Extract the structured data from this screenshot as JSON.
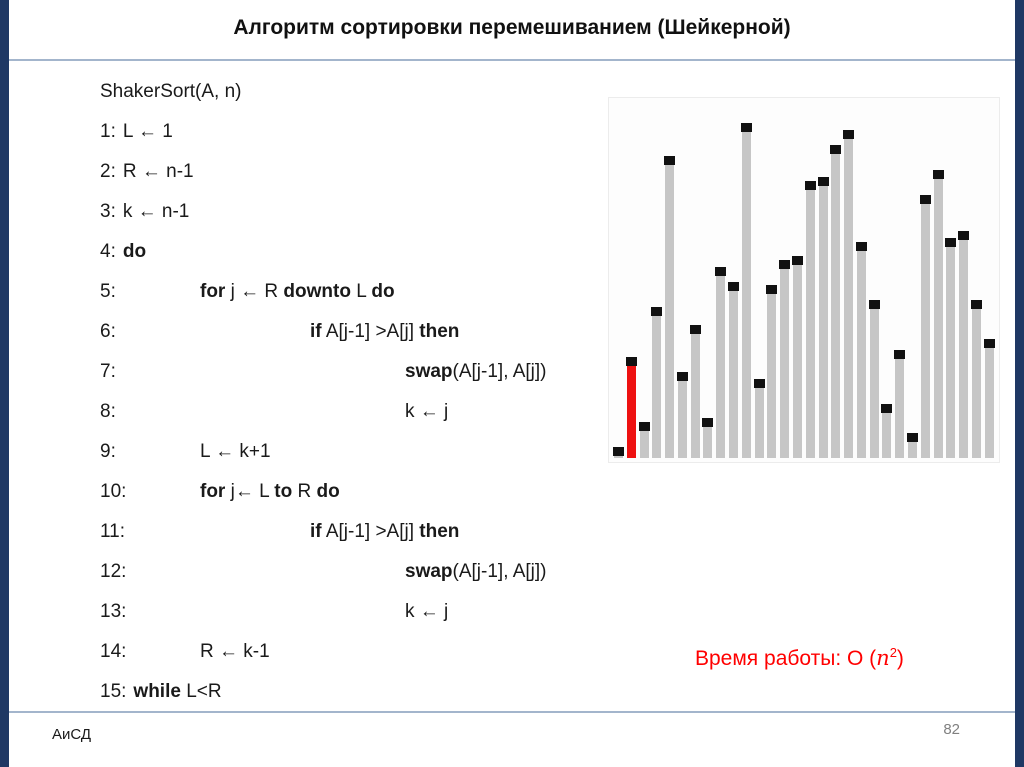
{
  "title": "Алгоритм сортировки перемешиванием (Шейкерной)",
  "footer": {
    "left": "АиСД",
    "page": "82"
  },
  "runtime": {
    "prefix": "Время работы: O (",
    "var": "n",
    "exp": "2",
    "suffix": ")"
  },
  "code": {
    "lines": [
      {
        "num": "",
        "indent": 0,
        "segments": [
          {
            "t": "ShakerSort(A, n)",
            "b": false
          }
        ]
      },
      {
        "num": "1:",
        "indent": 0,
        "segments": [
          {
            "t": "L ← 1",
            "b": false
          }
        ]
      },
      {
        "num": "2:",
        "indent": 0,
        "segments": [
          {
            "t": "R ← n-1",
            "b": false
          }
        ]
      },
      {
        "num": "3:",
        "indent": 0,
        "segments": [
          {
            "t": "k ← n-1",
            "b": false
          }
        ]
      },
      {
        "num": "4:",
        "indent": 0,
        "segments": [
          {
            "t": "do",
            "b": true
          }
        ]
      },
      {
        "num": "5:",
        "indent": 1,
        "segments": [
          {
            "t": "for",
            "b": true
          },
          {
            "t": " j ← R ",
            "b": false
          },
          {
            "t": "downto",
            "b": true
          },
          {
            "t": " L ",
            "b": false
          },
          {
            "t": "do",
            "b": true
          }
        ]
      },
      {
        "num": "6:",
        "indent": 2,
        "segments": [
          {
            "t": "if",
            "b": true
          },
          {
            "t": " A[j-1] >A[j] ",
            "b": false
          },
          {
            "t": "then",
            "b": true
          }
        ]
      },
      {
        "num": "7:",
        "indent": 3,
        "segments": [
          {
            "t": "swap",
            "b": true
          },
          {
            "t": "(A[j-1], A[j])",
            "b": false
          }
        ]
      },
      {
        "num": "8:",
        "indent": 3,
        "segments": [
          {
            "t": "k ← j",
            "b": false
          }
        ]
      },
      {
        "num": "9:",
        "indent": 1,
        "segments": [
          {
            "t": "L ← k+1",
            "b": false
          }
        ]
      },
      {
        "num": "10:",
        "indent": 1,
        "segments": [
          {
            "t": "for",
            "b": true
          },
          {
            "t": " j← L ",
            "b": false
          },
          {
            "t": "to",
            "b": true
          },
          {
            "t": " R ",
            "b": false
          },
          {
            "t": "do",
            "b": true
          }
        ]
      },
      {
        "num": "11:",
        "indent": 2,
        "segments": [
          {
            "t": "if",
            "b": true
          },
          {
            "t": " A[j-1] >A[j] ",
            "b": false
          },
          {
            "t": "then",
            "b": true
          }
        ]
      },
      {
        "num": "12:",
        "indent": 3,
        "segments": [
          {
            "t": "swap",
            "b": true
          },
          {
            "t": "(A[j-1], A[j])",
            "b": false
          }
        ]
      },
      {
        "num": "13:",
        "indent": 3,
        "segments": [
          {
            "t": "k ← j",
            "b": false
          }
        ]
      },
      {
        "num": "14:",
        "indent": 1,
        "segments": [
          {
            "t": "R ← k-1",
            "b": false
          }
        ]
      },
      {
        "num": "15:",
        "indent": 0,
        "segments": [
          {
            "t": "while",
            "b": true
          },
          {
            "t": " L<R",
            "b": false
          }
        ]
      }
    ]
  },
  "chart_data": {
    "type": "bar",
    "title": "",
    "xlabel": "",
    "ylabel": "",
    "ylim": [
      0,
      100
    ],
    "values": [
      3,
      28,
      10,
      42,
      84,
      24,
      37,
      11,
      53,
      49,
      93,
      22,
      48,
      55,
      56,
      77,
      78,
      87,
      91,
      60,
      44,
      15,
      30,
      7,
      73,
      80,
      61,
      63,
      44,
      33
    ],
    "highlight_index": 1,
    "bar_color": "#c6c6c6",
    "highlight_color": "#ee1111",
    "marker_color": "#111111",
    "legend": "off",
    "grid": "off"
  },
  "colors": {
    "edge": "#1f3864",
    "rule": "#a3b5cc",
    "red": "#ff0000",
    "page_number": "#808080"
  }
}
